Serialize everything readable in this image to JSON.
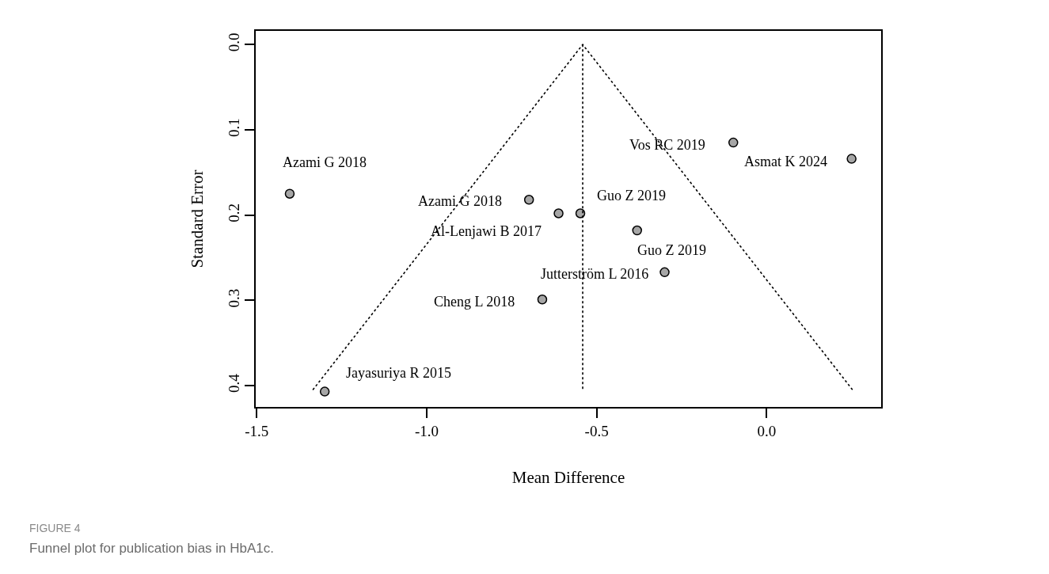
{
  "chart_data": {
    "type": "scatter",
    "xlabel": "Mean Difference",
    "ylabel": "Standard Error",
    "x": [
      -1.403,
      -1.3,
      -0.699,
      -0.612,
      -0.548,
      -0.381,
      -0.66,
      -0.3,
      -0.098,
      0.25
    ],
    "series": [
      {
        "color": "#a6a6a6",
        "marker": "circle",
        "values": [
          0.175,
          0.407,
          0.182,
          0.198,
          0.198,
          0.218,
          0.299,
          0.267,
          0.115,
          0.134
        ]
      },
      {
        "type": "line",
        "color": "#000000",
        "marker": "none",
        "line_style": "dotted",
        "x": [
          -1.335,
          -0.541,
          0.253
        ],
        "values": [
          0.405,
          0,
          0.405
        ]
      },
      {
        "type": "line",
        "color": "#000000",
        "marker": "none",
        "line_style": "dotted",
        "x": [
          -0.541,
          -0.541
        ],
        "values": [
          0,
          0.405
        ]
      }
    ],
    "xlim": [
      -1.503,
      0.337
    ],
    "ylim": [
      0.425,
      -0.016
    ],
    "xticks": [
      {
        "value": -1.5,
        "label": "-1.5"
      },
      {
        "value": -1.0,
        "label": "-1.0"
      },
      {
        "value": -0.5,
        "label": "-0.5"
      },
      {
        "value": 0,
        "label": "0.0"
      }
    ],
    "yticks": [
      {
        "value": 0,
        "label": "0.0"
      },
      {
        "value": 0.1,
        "label": "0.1"
      },
      {
        "value": 0.2,
        "label": "0.2"
      },
      {
        "value": 0.3,
        "label": "0.3"
      },
      {
        "value": 0.4,
        "label": "0.4"
      }
    ],
    "annotations": [
      {
        "text": "Azami G 2018",
        "x": -1.403,
        "y": 0.175
      },
      {
        "text": "Jayasuriya R 2015",
        "x": -1.3,
        "y": 0.407
      },
      {
        "text": "Azami G 2018",
        "x": -0.699,
        "y": 0.182
      },
      {
        "text": "Al-Lenjawi B 2017",
        "x": -0.612,
        "y": 0.198
      },
      {
        "text": "Guo Z 2019",
        "x": -0.548,
        "y": 0.198
      },
      {
        "text": "Guo Z 2019",
        "x": -0.381,
        "y": 0.218
      },
      {
        "text": "Cheng L 2018",
        "x": -0.66,
        "y": 0.299
      },
      {
        "text": "Jutterström L 2016",
        "x": -0.3,
        "y": 0.267
      },
      {
        "text": "Vos RC 2019",
        "x": -0.098,
        "y": 0.115
      },
      {
        "text": "Asmat K 2024",
        "x": 0.25,
        "y": 0.134
      },
      "FIGURE 4",
      "Funnel plot for publication bias in HbA1c."
    ]
  }
}
